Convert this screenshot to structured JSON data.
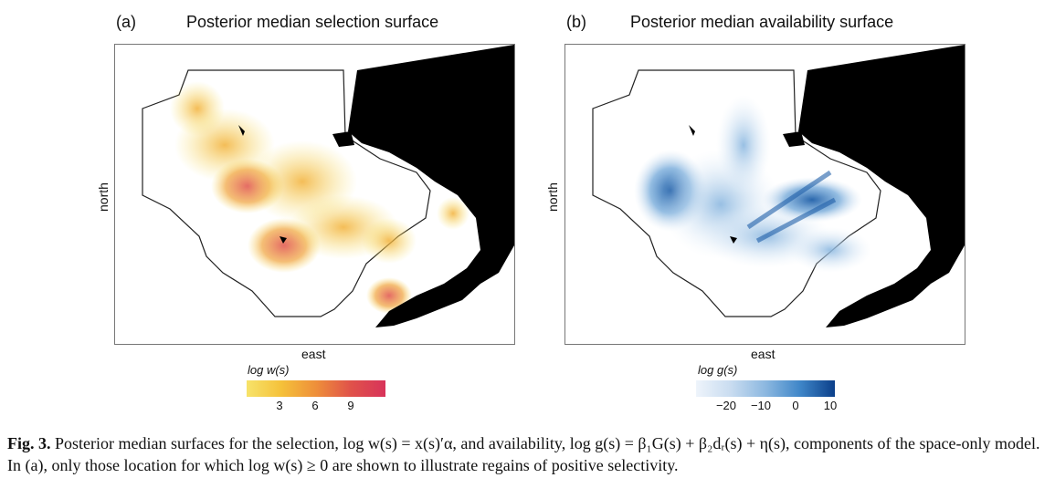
{
  "panel_a": {
    "letter": "(a)",
    "title": "Posterior median selection surface",
    "xlabel": "east",
    "ylabel": "north",
    "legend_title": "log w(s)",
    "ticks": [
      "3",
      "6",
      "9"
    ],
    "colors": [
      "#f7e36a",
      "#f5c13a",
      "#ee8f3a",
      "#e0524a",
      "#d8335a"
    ]
  },
  "panel_b": {
    "letter": "(b)",
    "title": "Posterior median availability surface",
    "xlabel": "east",
    "ylabel": "north",
    "legend_title": "log g(s)",
    "ticks": [
      "−20",
      "−10",
      "0",
      "10"
    ],
    "colors": [
      "#eef4fb",
      "#c9dcf0",
      "#8cb8e0",
      "#3f86c8",
      "#0b3f8a"
    ]
  },
  "caption": {
    "label": "Fig. 3.",
    "text": "Posterior median surfaces for the selection, log w(s) = x(s)′α, and availability, log g(s) = β₁G(s) + β₂dᵣ(s) + η(s), components of the space-only model. In (a), only those location for which  log w(s) ≥ 0 are shown to illustrate regains of positive selectivity."
  }
}
